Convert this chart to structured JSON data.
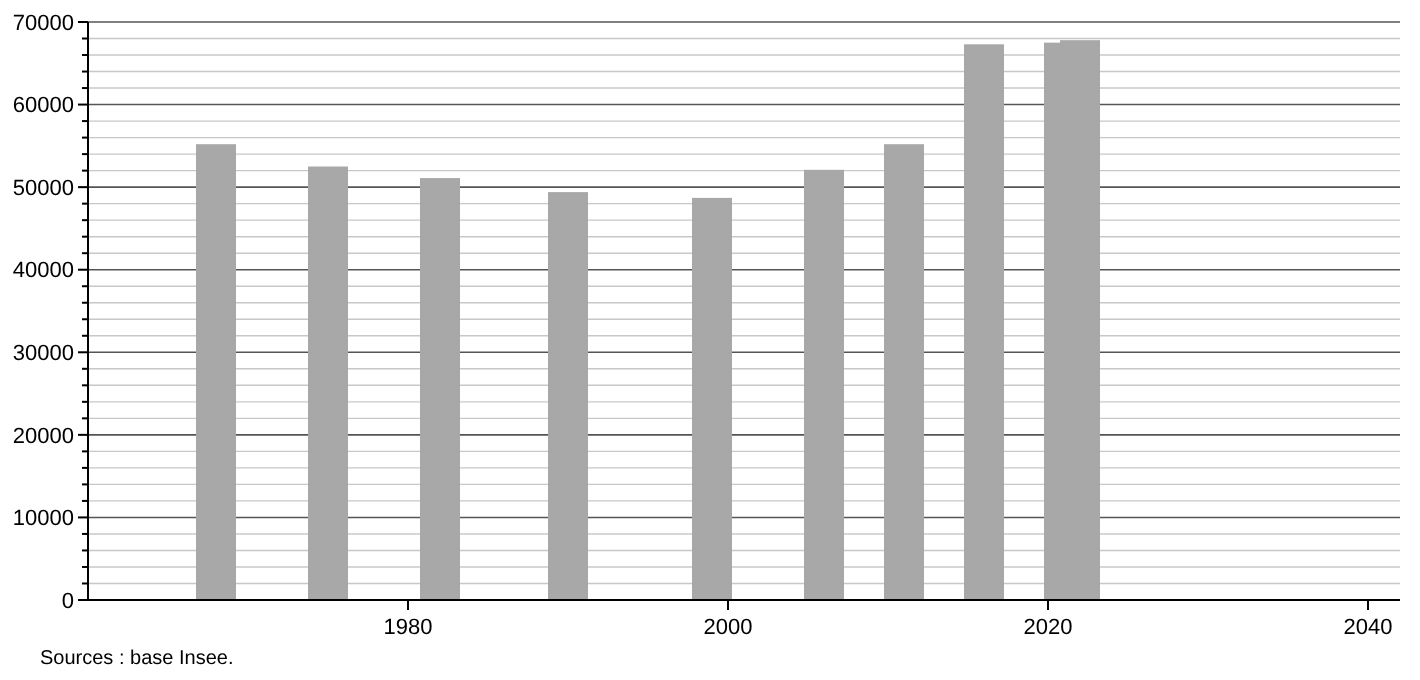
{
  "chart_data": {
    "type": "bar",
    "x": [
      1968,
      1975,
      1982,
      1990,
      1999,
      2006,
      2011,
      2016,
      2021,
      2022
    ],
    "values": [
      55200,
      52500,
      51100,
      49400,
      48700,
      52100,
      55200,
      67300,
      67500,
      67800
    ],
    "color": "#a8a8a8",
    "xlim": [
      1960,
      2042
    ],
    "xticks": [
      1980,
      2000,
      2020,
      2040
    ],
    "ylim": [
      0,
      70000
    ],
    "yticks": [
      0,
      {
        "value": 2000,
        "label": null
      },
      {
        "value": 4000,
        "label": null
      },
      {
        "value": 6000,
        "label": null
      },
      {
        "value": 8000,
        "label": null
      },
      10000,
      {
        "value": 12000,
        "label": null
      },
      {
        "value": 14000,
        "label": null
      },
      {
        "value": 16000,
        "label": null
      },
      {
        "value": 18000,
        "label": null
      },
      20000,
      {
        "value": 22000,
        "label": null
      },
      {
        "value": 24000,
        "label": null
      },
      {
        "value": 26000,
        "label": null
      },
      {
        "value": 28000,
        "label": null
      },
      30000,
      {
        "value": 32000,
        "label": null
      },
      {
        "value": 34000,
        "label": null
      },
      {
        "value": 36000,
        "label": null
      },
      {
        "value": 38000,
        "label": null
      },
      40000,
      {
        "value": 42000,
        "label": null
      },
      {
        "value": 44000,
        "label": null
      },
      {
        "value": 46000,
        "label": null
      },
      {
        "value": 48000,
        "label": null
      },
      50000,
      {
        "value": 52000,
        "label": null
      },
      {
        "value": 54000,
        "label": null
      },
      {
        "value": 56000,
        "label": null
      },
      {
        "value": 58000,
        "label": null
      },
      60000,
      {
        "value": 62000,
        "label": null
      },
      {
        "value": 64000,
        "label": null
      },
      {
        "value": 66000,
        "label": null
      },
      {
        "value": 68000,
        "label": null
      },
      70000
    ],
    "grid": true,
    "annotations": [
      "Sources : base Insee."
    ]
  }
}
